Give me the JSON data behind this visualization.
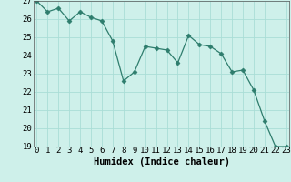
{
  "title": "",
  "xlabel": "Humidex (Indice chaleur)",
  "ylabel": "",
  "x": [
    0,
    1,
    2,
    3,
    4,
    5,
    6,
    7,
    8,
    9,
    10,
    11,
    12,
    13,
    14,
    15,
    16,
    17,
    18,
    19,
    20,
    21,
    22,
    23
  ],
  "y": [
    27.0,
    26.4,
    26.6,
    25.9,
    26.4,
    26.1,
    25.9,
    24.8,
    22.6,
    23.1,
    24.5,
    24.4,
    24.3,
    23.6,
    25.1,
    24.6,
    24.5,
    24.1,
    23.1,
    23.2,
    22.1,
    20.4,
    19.0,
    19.0
  ],
  "ylim": [
    19,
    27
  ],
  "xlim": [
    -0.3,
    23.3
  ],
  "line_color": "#2e7d6d",
  "marker": "D",
  "marker_size": 2.5,
  "bg_color": "#cef0ea",
  "grid_color": "#aaddd6",
  "tick_label_fontsize": 6.5,
  "xlabel_fontsize": 7.5,
  "yticks": [
    19,
    20,
    21,
    22,
    23,
    24,
    25,
    26,
    27
  ]
}
